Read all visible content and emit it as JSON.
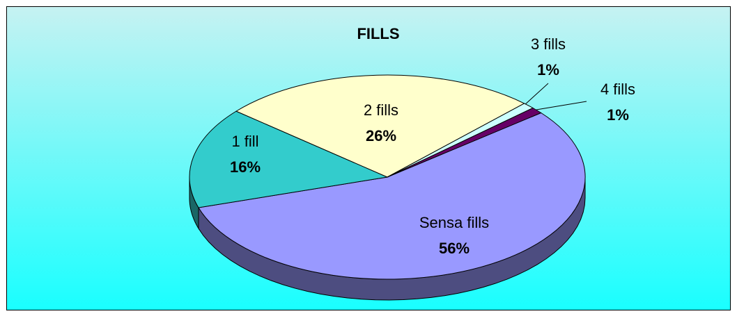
{
  "chart_data": {
    "type": "pie",
    "title": "FILLS",
    "categories": [
      "Sensa fills",
      "1 fill",
      "2 fills",
      "3 fills",
      "4 fills"
    ],
    "values": [
      56,
      16,
      26,
      1,
      1
    ],
    "value_labels": [
      "56%",
      "16%",
      "26%",
      "1%",
      "1%"
    ],
    "colors": [
      "#9999ff",
      "#33cccc",
      "#ffffcc",
      "#ccffff",
      "#660066"
    ]
  }
}
